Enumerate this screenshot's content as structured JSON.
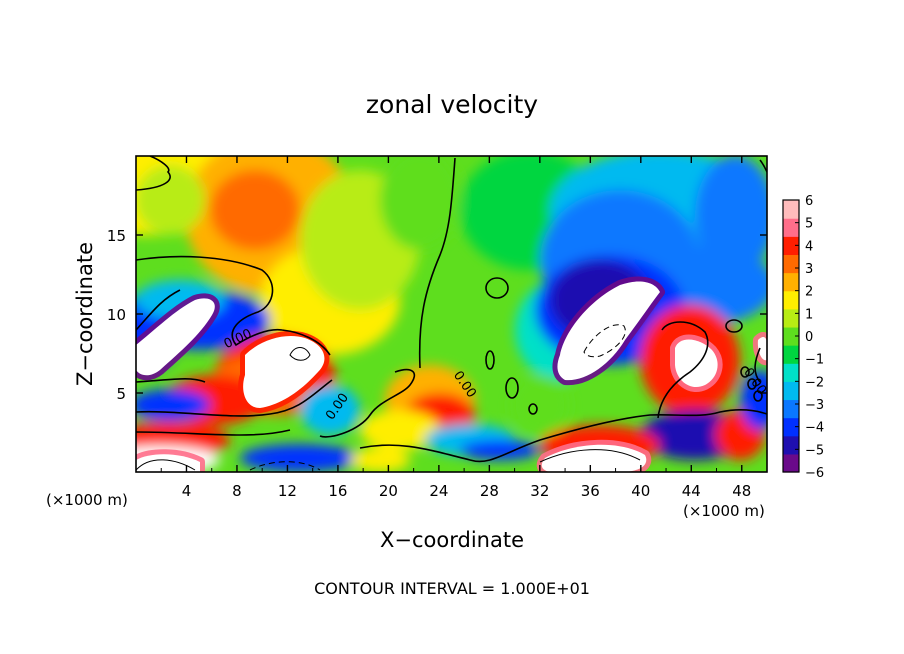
{
  "chart_data": {
    "type": "heatmap",
    "title": "zonal velocity",
    "xlabel": "X−coordinate",
    "ylabel": "Z−coordinate",
    "x_unit_left": "(×1000 m)",
    "x_unit_right": "(×1000 m)",
    "footer": "CONTOUR INTERVAL = 1.000E+01",
    "xlim": [
      0,
      50
    ],
    "ylim": [
      0,
      20
    ],
    "x_ticks": [
      4,
      8,
      12,
      16,
      20,
      24,
      28,
      32,
      36,
      40,
      44,
      48
    ],
    "y_ticks": [
      5,
      10,
      15
    ],
    "colorbar": {
      "min": -6,
      "max": 6,
      "ticks": [
        6,
        5,
        4,
        3,
        2,
        1,
        0,
        -1,
        -2,
        -3,
        -4,
        -5,
        -6
      ],
      "tick_labels": [
        "6",
        "5",
        "4",
        "3",
        "2",
        "1",
        "0",
        "−1",
        "−2",
        "−3",
        "−4",
        "−5",
        "−6"
      ],
      "colors": [
        "#6a0a8a",
        "#1f0fb0",
        "#0030ff",
        "#0a78ff",
        "#00baf0",
        "#00e0c8",
        "#00d640",
        "#5ede1e",
        "#b8ec14",
        "#ffee00",
        "#ffb000",
        "#ff6a00",
        "#ff1e00",
        "#ff6e8a",
        "#ffbcbc"
      ],
      "out_of_range_color": "#ffffff"
    },
    "contour_labels": [
      {
        "text": "0.00",
        "x": 8.2,
        "y": 8.2,
        "angle": -25
      },
      {
        "text": "0.00",
        "x": 16.2,
        "y": 4.0,
        "angle": -55
      },
      {
        "text": "0.00",
        "x": 25.8,
        "y": 5.4,
        "angle": 55
      },
      {
        "text": "0.00",
        "x": 48.8,
        "y": 5.6,
        "angle": 55
      }
    ]
  }
}
